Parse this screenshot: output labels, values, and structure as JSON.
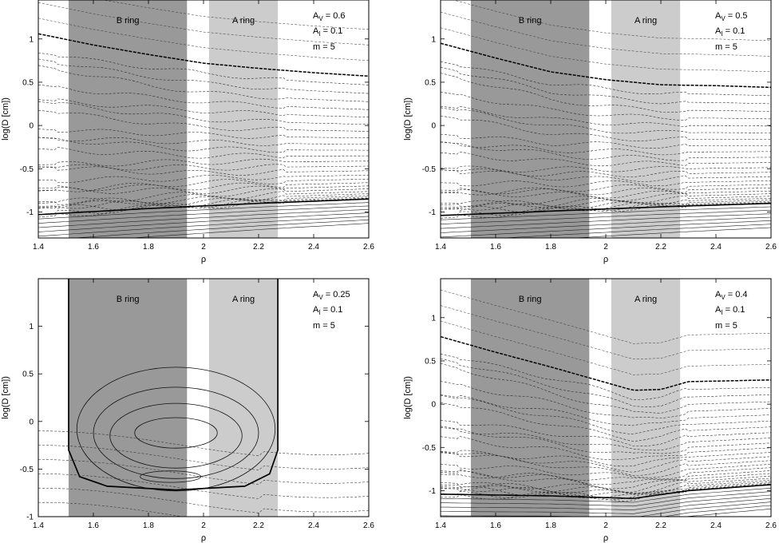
{
  "chart_data": [
    {
      "type": "contour",
      "xlabel": "ρ",
      "ylabel": "log(D [cm])",
      "xlim": [
        1.4,
        2.6
      ],
      "ylim": [
        -1.3,
        1.45
      ],
      "xticks": [
        "1.4",
        "1.6",
        "1.8",
        "2",
        "2.2",
        "2.4",
        "2.6"
      ],
      "yticks": [
        "-1",
        "-0.5",
        "0",
        "0.5",
        "1"
      ],
      "ytick_values": [
        -1,
        -0.5,
        0,
        0.5,
        1
      ],
      "regions": [
        {
          "label": "B ring",
          "x0": 1.51,
          "x1": 1.94,
          "color": "#999999"
        },
        {
          "label": "A ring",
          "x0": 2.02,
          "x1": 2.27,
          "color": "#cccccc"
        }
      ],
      "annotations": {
        "av": "0.6",
        "ai": "0.1",
        "m": "5"
      },
      "ann_text": {
        "av_base": "A",
        "av_sub": "V",
        "av_val": " = 0.6",
        "ai_base": "A",
        "ai_sub": "I",
        "ai_val": " = 0.1",
        "m": "m = 5"
      },
      "bold_upper": [
        [
          1.4,
          1.06
        ],
        [
          1.6,
          0.93
        ],
        [
          1.8,
          0.82
        ],
        [
          2.0,
          0.72
        ],
        [
          2.2,
          0.66
        ],
        [
          2.4,
          0.61
        ],
        [
          2.6,
          0.57
        ]
      ],
      "bold_lower": [
        [
          1.4,
          -1.03
        ],
        [
          1.8,
          -0.96
        ],
        [
          2.2,
          -0.9
        ],
        [
          2.6,
          -0.85
        ]
      ],
      "shape": "wavy"
    },
    {
      "type": "contour",
      "xlabel": "ρ",
      "ylabel": "log(D [cm])",
      "xlim": [
        1.4,
        2.6
      ],
      "ylim": [
        -1.3,
        1.45
      ],
      "xticks": [
        "1.4",
        "1.6",
        "1.8",
        "2",
        "2.2",
        "2.4",
        "2.6"
      ],
      "yticks": [
        "-1",
        "-0.5",
        "0",
        "0.5",
        "1"
      ],
      "ytick_values": [
        -1,
        -0.5,
        0,
        0.5,
        1
      ],
      "regions": [
        {
          "label": "B ring",
          "x0": 1.51,
          "x1": 1.94,
          "color": "#999999"
        },
        {
          "label": "A ring",
          "x0": 2.02,
          "x1": 2.27,
          "color": "#cccccc"
        }
      ],
      "annotations": {
        "av": "0.5",
        "ai": "0.1",
        "m": "5"
      },
      "ann_text": {
        "av_base": "A",
        "av_sub": "V",
        "av_val": " = 0.5",
        "ai_base": "A",
        "ai_sub": "I",
        "ai_val": " = 0.1",
        "m": "m = 5"
      },
      "bold_upper": [
        [
          1.4,
          0.95
        ],
        [
          1.6,
          0.78
        ],
        [
          1.8,
          0.62
        ],
        [
          2.0,
          0.53
        ],
        [
          2.2,
          0.47
        ],
        [
          2.4,
          0.46
        ],
        [
          2.6,
          0.44
        ]
      ],
      "bold_lower": [
        [
          1.4,
          -1.04
        ],
        [
          1.8,
          -0.99
        ],
        [
          2.2,
          -0.94
        ],
        [
          2.6,
          -0.9
        ]
      ],
      "shape": "wavy"
    },
    {
      "type": "contour",
      "xlabel": "ρ",
      "ylabel": "log(D [cm])",
      "xlim": [
        1.4,
        2.6
      ],
      "ylim": [
        -1,
        1.5
      ],
      "xticks": [
        "1.4",
        "1.6",
        "1.8",
        "2",
        "2.2",
        "2.4",
        "2.6"
      ],
      "yticks": [
        "-1",
        "-0.5",
        "0",
        "0.5",
        "1"
      ],
      "ytick_values": [
        -1,
        -0.5,
        0,
        0.5,
        1
      ],
      "regions": [
        {
          "label": "B ring",
          "x0": 1.51,
          "x1": 1.94,
          "color": "#999999"
        },
        {
          "label": "A ring",
          "x0": 2.02,
          "x1": 2.27,
          "color": "#cccccc"
        }
      ],
      "annotations": {
        "av": "0.25",
        "ai": "0.1",
        "m": "5"
      },
      "ann_text": {
        "av_base": "A",
        "av_sub": "V",
        "av_val": " = 0.25",
        "ai_base": "A",
        "ai_sub": "I",
        "ai_val": " = 0.1",
        "m": "m = 5"
      },
      "shape": "closed"
    },
    {
      "type": "contour",
      "xlabel": "ρ",
      "ylabel": "log(D [cm])",
      "xlim": [
        1.4,
        2.6
      ],
      "ylim": [
        -1.3,
        1.45
      ],
      "xticks": [
        "1.4",
        "1.6",
        "1.8",
        "2",
        "2.2",
        "2.4",
        "2.6"
      ],
      "yticks": [
        "-1",
        "-0.5",
        "0",
        "0.5",
        "1"
      ],
      "ytick_values": [
        -1,
        -0.5,
        0,
        0.5,
        1
      ],
      "regions": [
        {
          "label": "B ring",
          "x0": 1.51,
          "x1": 1.94,
          "color": "#999999"
        },
        {
          "label": "A ring",
          "x0": 2.02,
          "x1": 2.27,
          "color": "#cccccc"
        }
      ],
      "annotations": {
        "av": "0.4",
        "ai": "0.1",
        "m": "5"
      },
      "ann_text": {
        "av_base": "A",
        "av_sub": "V",
        "av_val": " = 0.4",
        "ai_base": "A",
        "ai_sub": "I",
        "ai_val": " = 0.1",
        "m": "m = 5"
      },
      "bold_upper": [
        [
          1.4,
          0.78
        ],
        [
          1.6,
          0.6
        ],
        [
          1.8,
          0.43
        ],
        [
          2.0,
          0.25
        ],
        [
          2.1,
          0.16
        ],
        [
          2.2,
          0.17
        ],
        [
          2.3,
          0.26
        ],
        [
          2.6,
          0.28
        ]
      ],
      "bold_lower": [
        [
          1.4,
          -1.04
        ],
        [
          1.8,
          -1.06
        ],
        [
          2.1,
          -1.09
        ],
        [
          2.3,
          -1.0
        ],
        [
          2.6,
          -0.93
        ]
      ],
      "shape": "wavy"
    }
  ]
}
